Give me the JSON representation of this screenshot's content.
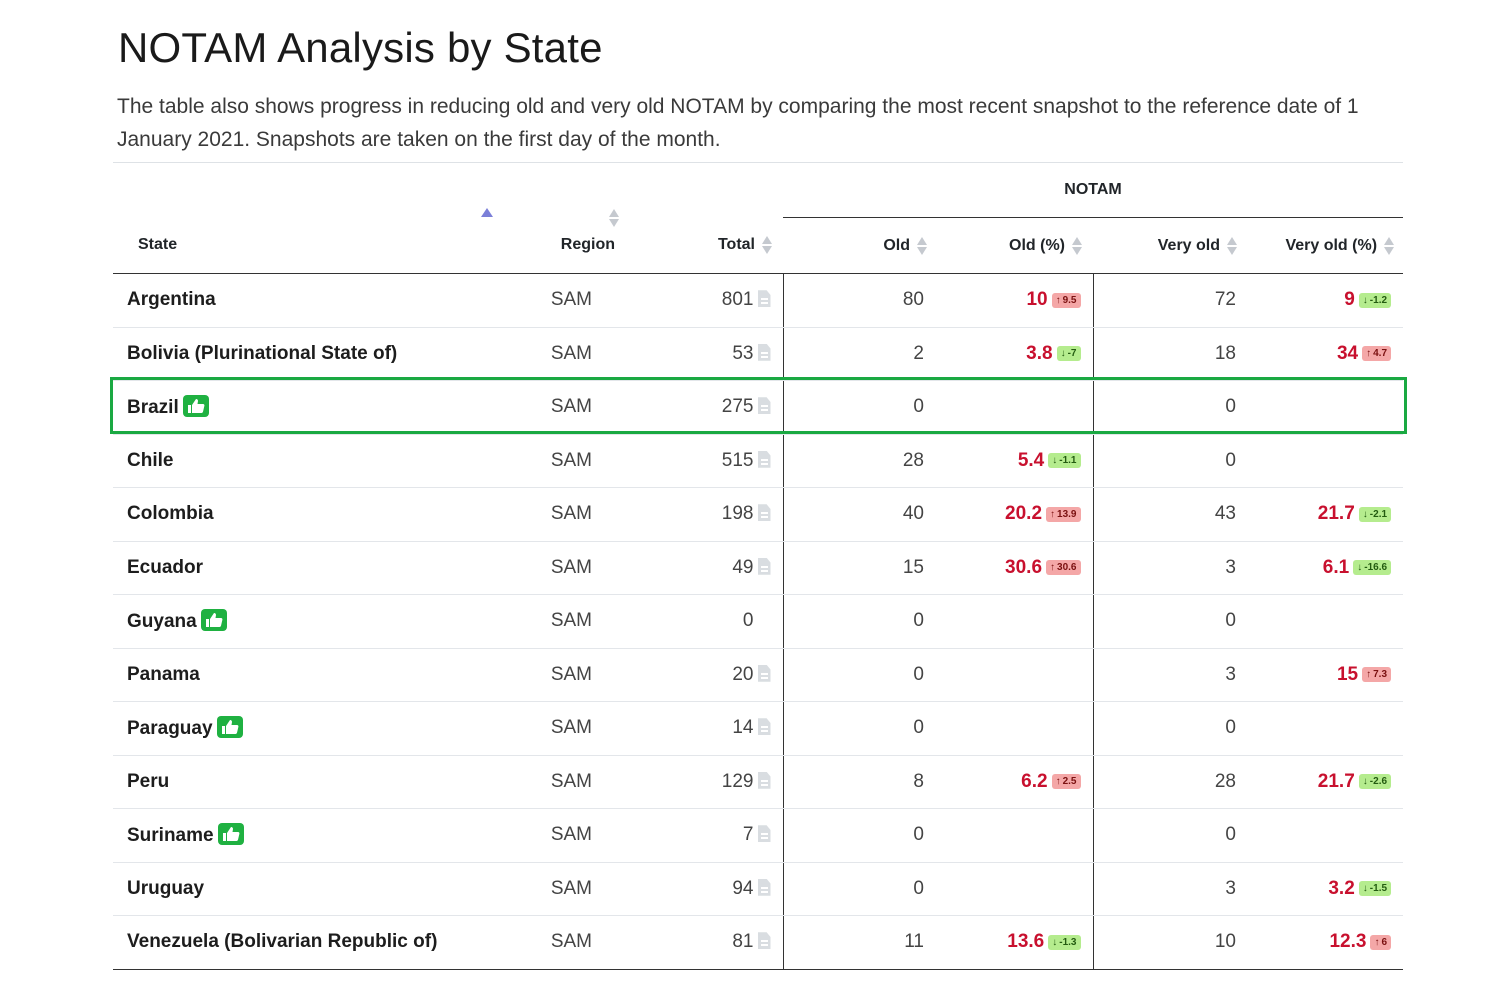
{
  "page": {
    "title": "NOTAM Analysis by State",
    "description": "The table also shows progress in reducing old and very old NOTAM by comparing the most recent snapshot to the reference date of 1 January 2021. Snapshots are taken on the first day of the month."
  },
  "table": {
    "group_header": "NOTAM",
    "columns": [
      "State",
      "Region",
      "Total",
      "Old",
      "Old (%)",
      "Very old",
      "Very old (%)"
    ],
    "sorted_by": "State",
    "sort_direction": "ascending",
    "highlighted_row": "Brazil",
    "colors": {
      "highlight_border": "#1aa942",
      "percent_text": "#c8102e",
      "increase_badge": "#f4a7a7",
      "decrease_badge": "#b5ec8e",
      "thumb_badge": "#1fb141"
    },
    "rows": [
      {
        "state": "Argentina",
        "thumbs_up": false,
        "region": "SAM",
        "total": "801",
        "has_doc": true,
        "old": "80",
        "old_pct": "10",
        "old_chg": "9.5",
        "old_dir": "up",
        "very_old": "72",
        "very_old_pct": "9",
        "very_old_chg": "-1.2",
        "very_old_dir": "down"
      },
      {
        "state": "Bolivia (Plurinational State of)",
        "thumbs_up": false,
        "region": "SAM",
        "total": "53",
        "has_doc": true,
        "old": "2",
        "old_pct": "3.8",
        "old_chg": "-7",
        "old_dir": "down",
        "very_old": "18",
        "very_old_pct": "34",
        "very_old_chg": "4.7",
        "very_old_dir": "up"
      },
      {
        "state": "Brazil",
        "thumbs_up": true,
        "region": "SAM",
        "total": "275",
        "has_doc": true,
        "old": "0",
        "old_pct": "",
        "old_chg": "",
        "old_dir": "",
        "very_old": "0",
        "very_old_pct": "",
        "very_old_chg": "",
        "very_old_dir": ""
      },
      {
        "state": "Chile",
        "thumbs_up": false,
        "region": "SAM",
        "total": "515",
        "has_doc": true,
        "old": "28",
        "old_pct": "5.4",
        "old_chg": "-1.1",
        "old_dir": "down",
        "very_old": "0",
        "very_old_pct": "",
        "very_old_chg": "",
        "very_old_dir": ""
      },
      {
        "state": "Colombia",
        "thumbs_up": false,
        "region": "SAM",
        "total": "198",
        "has_doc": true,
        "old": "40",
        "old_pct": "20.2",
        "old_chg": "13.9",
        "old_dir": "up",
        "very_old": "43",
        "very_old_pct": "21.7",
        "very_old_chg": "-2.1",
        "very_old_dir": "down"
      },
      {
        "state": "Ecuador",
        "thumbs_up": false,
        "region": "SAM",
        "total": "49",
        "has_doc": true,
        "old": "15",
        "old_pct": "30.6",
        "old_chg": "30.6",
        "old_dir": "up",
        "very_old": "3",
        "very_old_pct": "6.1",
        "very_old_chg": "-16.6",
        "very_old_dir": "down"
      },
      {
        "state": "Guyana",
        "thumbs_up": true,
        "region": "SAM",
        "total": "0",
        "has_doc": false,
        "old": "0",
        "old_pct": "",
        "old_chg": "",
        "old_dir": "",
        "very_old": "0",
        "very_old_pct": "",
        "very_old_chg": "",
        "very_old_dir": ""
      },
      {
        "state": "Panama",
        "thumbs_up": false,
        "region": "SAM",
        "total": "20",
        "has_doc": true,
        "old": "0",
        "old_pct": "",
        "old_chg": "",
        "old_dir": "",
        "very_old": "3",
        "very_old_pct": "15",
        "very_old_chg": "7.3",
        "very_old_dir": "up"
      },
      {
        "state": "Paraguay",
        "thumbs_up": true,
        "region": "SAM",
        "total": "14",
        "has_doc": true,
        "old": "0",
        "old_pct": "",
        "old_chg": "",
        "old_dir": "",
        "very_old": "0",
        "very_old_pct": "",
        "very_old_chg": "",
        "very_old_dir": ""
      },
      {
        "state": "Peru",
        "thumbs_up": false,
        "region": "SAM",
        "total": "129",
        "has_doc": true,
        "old": "8",
        "old_pct": "6.2",
        "old_chg": "2.5",
        "old_dir": "up",
        "very_old": "28",
        "very_old_pct": "21.7",
        "very_old_chg": "-2.6",
        "very_old_dir": "down"
      },
      {
        "state": "Suriname",
        "thumbs_up": true,
        "region": "SAM",
        "total": "7",
        "has_doc": true,
        "old": "0",
        "old_pct": "",
        "old_chg": "",
        "old_dir": "",
        "very_old": "0",
        "very_old_pct": "",
        "very_old_chg": "",
        "very_old_dir": ""
      },
      {
        "state": "Uruguay",
        "thumbs_up": false,
        "region": "SAM",
        "total": "94",
        "has_doc": true,
        "old": "0",
        "old_pct": "",
        "old_chg": "",
        "old_dir": "",
        "very_old": "3",
        "very_old_pct": "3.2",
        "very_old_chg": "-1.5",
        "very_old_dir": "down"
      },
      {
        "state": "Venezuela (Bolivarian Republic of)",
        "thumbs_up": false,
        "region": "SAM",
        "total": "81",
        "has_doc": true,
        "old": "11",
        "old_pct": "13.6",
        "old_chg": "-1.3",
        "old_dir": "down",
        "very_old": "10",
        "very_old_pct": "12.3",
        "very_old_chg": "6",
        "very_old_dir": "up"
      }
    ]
  }
}
